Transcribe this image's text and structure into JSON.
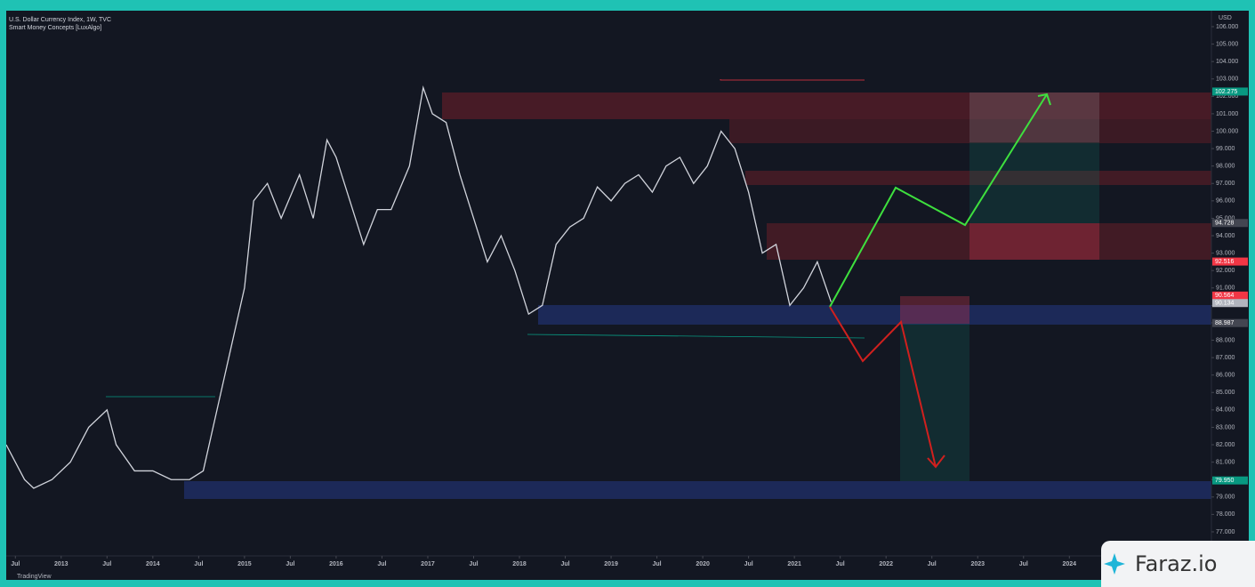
{
  "header": {
    "title": "U.S. Dollar Currency Index, 1W, TVC",
    "indicator": "Smart Money Concepts [LuxAlgo]",
    "currency": "USD",
    "footer": "TradingView",
    "brand": "Faraz.io"
  },
  "chart_data": {
    "type": "line",
    "color": "#d1d4dc",
    "x": [
      2012.4,
      2012.6,
      2012.7,
      2012.9,
      2013.1,
      2013.3,
      2013.5,
      2013.6,
      2013.8,
      2014.0,
      2014.2,
      2014.4,
      2014.55,
      2014.7,
      2014.85,
      2015.0,
      2015.1,
      2015.25,
      2015.4,
      2015.6,
      2015.75,
      2015.9,
      2016.0,
      2016.15,
      2016.3,
      2016.45,
      2016.6,
      2016.8,
      2016.95,
      2017.05,
      2017.2,
      2017.35,
      2017.5,
      2017.65,
      2017.8,
      2017.95,
      2018.1,
      2018.25,
      2018.4,
      2018.55,
      2018.7,
      2018.85,
      2019.0,
      2019.15,
      2019.3,
      2019.45,
      2019.6,
      2019.75,
      2019.9,
      2020.05,
      2020.2,
      2020.35,
      2020.5,
      2020.65,
      2020.8,
      2020.95,
      2021.1,
      2021.25,
      2021.4
    ],
    "values": [
      82,
      80,
      79.5,
      80,
      81,
      83,
      84,
      82,
      80.5,
      80.5,
      80,
      80,
      80.5,
      84,
      87.5,
      91,
      96,
      97,
      95,
      97.5,
      95,
      99.5,
      98.5,
      96,
      93.5,
      95.5,
      95.5,
      98,
      102.5,
      101,
      100.5,
      97.5,
      95,
      92.5,
      94,
      92,
      89.5,
      90,
      93.5,
      94.5,
      95,
      96.8,
      96,
      97,
      97.5,
      96.5,
      98,
      98.5,
      97,
      98,
      100,
      99,
      96.5,
      93,
      93.5,
      90,
      91,
      92.5,
      90.2
    ],
    "xlim": [
      2012.41,
      2025.55
    ],
    "ylim": [
      75.62,
      107.02
    ],
    "xticks": [
      {
        "value": 2012.5,
        "label": "Jul"
      },
      2013,
      {
        "value": 2013.5,
        "label": "Jul"
      },
      2014,
      {
        "value": 2014.5,
        "label": "Jul"
      },
      2015,
      {
        "value": 2015.5,
        "label": "Jul"
      },
      2016,
      {
        "value": 2016.5,
        "label": "Jul"
      },
      2017,
      {
        "value": 2017.5,
        "label": "Jul"
      },
      2018,
      {
        "value": 2018.5,
        "label": "Jul"
      },
      2019,
      {
        "value": 2019.5,
        "label": "Jul"
      },
      2020,
      {
        "value": 2020.5,
        "label": "Jul"
      },
      2021,
      {
        "value": 2021.5,
        "label": "Jul"
      },
      2022,
      {
        "value": 2022.5,
        "label": "Jul"
      },
      2023,
      {
        "value": 2023.5,
        "label": "Jul"
      },
      2024
    ],
    "yticks": [
      {
        "value": 77,
        "label": "77.000"
      },
      {
        "value": 78,
        "label": "78.000"
      },
      {
        "value": 79,
        "label": "79.000"
      },
      {
        "value": 80,
        "label": "80.000"
      },
      {
        "value": 81,
        "label": "81.000"
      },
      {
        "value": 82,
        "label": "82.000"
      },
      {
        "value": 83,
        "label": "83.000"
      },
      {
        "value": 84,
        "label": "84.000"
      },
      {
        "value": 85,
        "label": "85.000"
      },
      {
        "value": 86,
        "label": "86.000"
      },
      {
        "value": 87,
        "label": "87.000"
      },
      {
        "value": 88,
        "label": "88.000"
      },
      {
        "value": 89,
        "label": "89.000"
      },
      {
        "value": 90,
        "label": "90.000"
      },
      {
        "value": 91,
        "label": "91.000"
      },
      {
        "value": 92,
        "label": "92.000"
      },
      {
        "value": 93,
        "label": "93.000"
      },
      {
        "value": 94,
        "label": "94.000"
      },
      {
        "value": 95,
        "label": "95.000"
      },
      {
        "value": 96,
        "label": "96.000"
      },
      {
        "value": 97,
        "label": "97.000"
      },
      {
        "value": 98,
        "label": "98.000"
      },
      {
        "value": 99,
        "label": "99.000"
      },
      {
        "value": 100,
        "label": "100.000"
      },
      {
        "value": 101,
        "label": "101.000"
      },
      {
        "value": 102,
        "label": "102.000"
      },
      {
        "value": 103,
        "label": "103.000"
      },
      {
        "value": 104,
        "label": "104.000"
      },
      {
        "value": 105,
        "label": "105.000"
      },
      {
        "value": 106,
        "label": "106.000"
      }
    ],
    "price_labels": [
      {
        "value": 102.275,
        "label": "102.275",
        "color": "#089981"
      },
      {
        "value": 94.728,
        "label": "94.728",
        "color": "#434651"
      },
      {
        "value": 92.516,
        "label": "92.516",
        "color": "#f23645"
      },
      {
        "value": 90.564,
        "label": "90.564",
        "color": "#f23645"
      },
      {
        "value": 90.134,
        "label": "90.134",
        "color": "#b2b5be"
      },
      {
        "value": 88.987,
        "label": "88.987",
        "color": "#434651"
      },
      {
        "value": 79.95,
        "label": "79.950",
        "color": "#089981"
      }
    ]
  }
}
